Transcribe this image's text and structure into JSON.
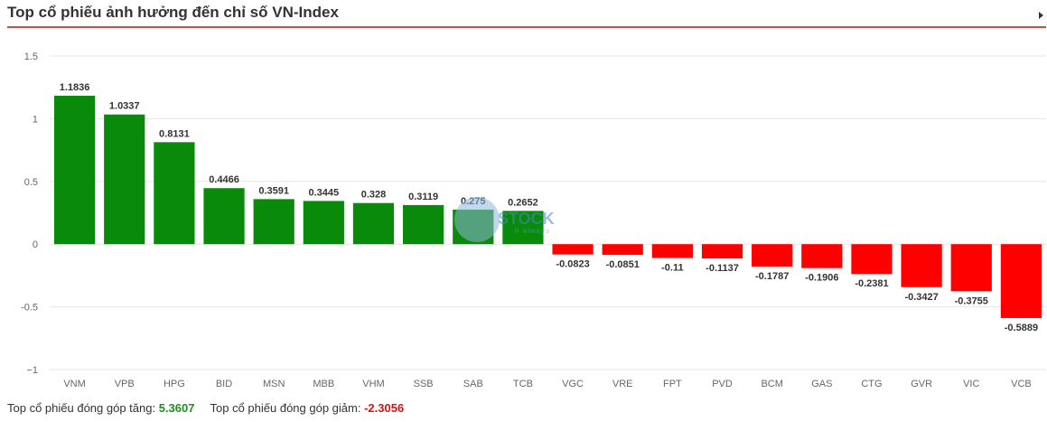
{
  "header": {
    "title": "Top cổ phiếu ảnh hưởng đến chỉ số VN-Index"
  },
  "chart_data": {
    "type": "bar",
    "categories": [
      "VNM",
      "VPB",
      "HPG",
      "BID",
      "MSN",
      "MBB",
      "VHM",
      "SSB",
      "SAB",
      "TCB",
      "VGC",
      "VRE",
      "FPT",
      "PVD",
      "BCM",
      "GAS",
      "CTG",
      "GVR",
      "VIC",
      "VCB"
    ],
    "values": [
      1.1836,
      1.0337,
      0.8131,
      0.4466,
      0.3591,
      0.3445,
      0.328,
      0.3119,
      0.275,
      0.2652,
      -0.0823,
      -0.0851,
      -0.11,
      -0.1137,
      -0.1787,
      -0.1906,
      -0.2381,
      -0.3427,
      -0.3755,
      -0.5889
    ],
    "value_labels": [
      "1.1836",
      "1.0337",
      "0.8131",
      "0.4466",
      "0.3591",
      "0.3445",
      "0.328",
      "0.3119",
      "0.275",
      "0.2652",
      "-0.0823",
      "-0.0851",
      "-0.11",
      "-0.1137",
      "-0.1787",
      "-0.1906",
      "-0.2381",
      "-0.3427",
      "-0.3755",
      "-0.5889"
    ],
    "yticks": [
      1.5,
      1,
      0.5,
      0,
      -0.5,
      -1
    ],
    "ytick_labels": [
      "1.5",
      "1",
      "0.5",
      "0",
      "-0.5",
      "−1"
    ],
    "ylim": [
      -1,
      1.5
    ],
    "grid": true,
    "colors": {
      "positive": "#0a8a0a",
      "negative": "#ff0000"
    }
  },
  "watermark": {
    "text": "STOCK",
    "tagline": "h always"
  },
  "footer": {
    "up_label": "Top cổ phiếu đóng góp tăng:",
    "up_value": "5.3607",
    "down_label": "Top cổ phiếu đóng góp giảm:",
    "down_value": "-2.3056"
  }
}
